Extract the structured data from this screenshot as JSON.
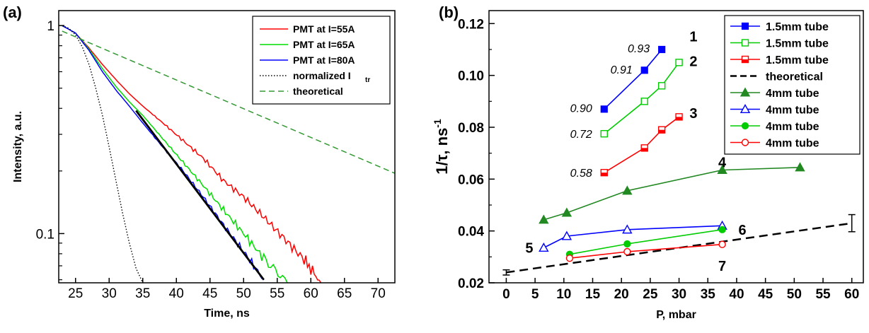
{
  "panels": {
    "a": {
      "label": "(a)"
    },
    "b": {
      "label": "(b)"
    }
  },
  "chart_data": [
    {
      "type": "line",
      "panel": "(a)",
      "xlabel": "Time, ns",
      "ylabel": "Intensity, a.u.",
      "xlim": [
        22.5,
        72.5
      ],
      "ylim": [
        0.058,
        1.18
      ],
      "yscale": "log",
      "xticks": [
        25,
        30,
        35,
        40,
        45,
        50,
        55,
        60,
        65,
        70
      ],
      "xtick_labels": [
        "25",
        "30",
        "35",
        "40",
        "45",
        "50",
        "55",
        "60",
        "65",
        "70"
      ],
      "yticks": [
        0.1,
        1
      ],
      "ytick_labels": [
        "0.1",
        "1"
      ],
      "legend_position": "top-right",
      "series": [
        {
          "name": "PMT at I=55A",
          "color": "#ff0000",
          "style": "solid",
          "x": [
            23,
            25,
            27,
            29,
            31,
            33,
            35,
            38,
            41,
            44,
            47,
            50,
            53,
            56,
            59,
            61.5
          ],
          "y": [
            1.0,
            0.92,
            0.78,
            0.65,
            0.55,
            0.47,
            0.41,
            0.34,
            0.28,
            0.23,
            0.18,
            0.15,
            0.12,
            0.095,
            0.075,
            0.058
          ]
        },
        {
          "name": "PMT at I=65A",
          "color": "#00dd00",
          "style": "solid",
          "x": [
            23,
            25,
            27,
            29,
            31,
            33,
            35,
            38,
            41,
            44,
            47,
            50,
            53,
            56.5
          ],
          "y": [
            1.0,
            0.92,
            0.77,
            0.62,
            0.51,
            0.43,
            0.37,
            0.285,
            0.22,
            0.17,
            0.13,
            0.1,
            0.076,
            0.058
          ]
        },
        {
          "name": "PMT at I=80A",
          "color": "#0000ff",
          "style": "solid",
          "x": [
            23,
            25,
            27,
            29,
            31,
            33,
            35,
            38,
            41,
            44,
            47,
            50,
            53
          ],
          "y": [
            1.0,
            0.92,
            0.76,
            0.6,
            0.49,
            0.41,
            0.34,
            0.26,
            0.2,
            0.15,
            0.11,
            0.082,
            0.06
          ]
        },
        {
          "name": "normalized I",
          "name_subscript": "tr",
          "color": "#000000",
          "style": "dotted",
          "x": [
            23,
            24,
            25,
            26,
            27,
            28,
            29,
            30,
            31,
            32,
            33,
            34,
            35
          ],
          "y": [
            1.0,
            0.97,
            0.9,
            0.79,
            0.65,
            0.5,
            0.37,
            0.26,
            0.18,
            0.125,
            0.09,
            0.068,
            0.058
          ]
        },
        {
          "name": "theoretical",
          "color": "#339933",
          "style": "dashed",
          "x": [
            23,
            72.5
          ],
          "y": [
            0.94,
            0.195
          ]
        },
        {
          "name": "",
          "color": "#000000",
          "style": "solid-thick",
          "x": [
            34,
            53
          ],
          "y": [
            0.39,
            0.06
          ]
        }
      ]
    },
    {
      "type": "line",
      "panel": "(b)",
      "xlabel": "P, mbar",
      "ylabel": "1/τ, ns",
      "ylabel_superscript": "-1",
      "xlim": [
        -3,
        62
      ],
      "ylim": [
        0.02,
        0.125
      ],
      "xticks": [
        0,
        5,
        10,
        15,
        20,
        25,
        30,
        35,
        40,
        45,
        50,
        55,
        60
      ],
      "xtick_labels": [
        "0",
        "5",
        "10",
        "15",
        "20",
        "25",
        "30",
        "35",
        "40",
        "45",
        "50",
        "55",
        "60"
      ],
      "yticks": [
        0.02,
        0.04,
        0.06,
        0.08,
        0.1,
        0.12
      ],
      "ytick_labels": [
        "0.02",
        "0.04",
        "0.06",
        "0.08",
        "0.10",
        "0.12"
      ],
      "legend_position": "top-right",
      "series": [
        {
          "name": "1.5mm tube",
          "color": "#0000ff",
          "marker": "square-filled",
          "label": "1",
          "x": [
            17,
            24,
            27
          ],
          "y": [
            0.087,
            0.102,
            0.11
          ]
        },
        {
          "name": "1.5mm tube",
          "color": "#00cc00",
          "marker": "square-open",
          "label": "2",
          "x": [
            17,
            24,
            27,
            30
          ],
          "y": [
            0.0775,
            0.09,
            0.096,
            0.105
          ]
        },
        {
          "name": "1.5mm tube",
          "color": "#ff0000",
          "marker": "square-half",
          "label": "3",
          "x": [
            17,
            24,
            27,
            30
          ],
          "y": [
            0.0625,
            0.072,
            0.079,
            0.084
          ]
        },
        {
          "name": "theoretical",
          "color": "#000000",
          "marker": "none",
          "style": "dashed",
          "x": [
            0,
            60
          ],
          "y": [
            0.024,
            0.043
          ]
        },
        {
          "name": "4mm tube",
          "color": "#228822",
          "marker": "triangle-filled",
          "label": "4",
          "x": [
            6.5,
            10.5,
            21,
            37.5,
            51
          ],
          "y": [
            0.0443,
            0.047,
            0.0555,
            0.0635,
            0.0645
          ]
        },
        {
          "name": "4mm tube",
          "color": "#0000ff",
          "marker": "triangle-open",
          "label": "5",
          "x": [
            6.5,
            10.5,
            21,
            37.5
          ],
          "y": [
            0.0335,
            0.038,
            0.0405,
            0.042
          ]
        },
        {
          "name": "4mm tube",
          "color": "#00cc00",
          "marker": "circle-filled",
          "label": "6",
          "x": [
            11,
            21,
            37.5
          ],
          "y": [
            0.031,
            0.035,
            0.0405
          ]
        },
        {
          "name": "4mm tube",
          "color": "#ff0000",
          "marker": "circle-open",
          "label": "7",
          "x": [
            11,
            21,
            37.5
          ],
          "y": [
            0.0295,
            0.032,
            0.0348
          ]
        }
      ],
      "error_bars": [
        {
          "x": 0,
          "y": 0.024,
          "yerr": 0.001
        },
        {
          "x": 60,
          "y": 0.043,
          "yerr": 0.0033
        }
      ],
      "annotations": [
        {
          "text": "0.93",
          "x": 23,
          "y": 0.1105
        },
        {
          "text": "0.91",
          "x": 20,
          "y": 0.1024
        },
        {
          "text": "0.90",
          "x": 13,
          "y": 0.0875
        },
        {
          "text": "0.72",
          "x": 13,
          "y": 0.0775
        },
        {
          "text": "0.58",
          "x": 13,
          "y": 0.0625
        }
      ],
      "curve_numbers": [
        {
          "text": "1",
          "x": 32.5,
          "y": 0.115
        },
        {
          "text": "2",
          "x": 32.5,
          "y": 0.1055
        },
        {
          "text": "3",
          "x": 32.5,
          "y": 0.0855
        },
        {
          "text": "4",
          "x": 37.5,
          "y": 0.0665
        },
        {
          "text": "5",
          "x": 4,
          "y": 0.0335
        },
        {
          "text": "6",
          "x": 41,
          "y": 0.0405
        },
        {
          "text": "7",
          "x": 37.5,
          "y": 0.0265
        }
      ]
    }
  ]
}
